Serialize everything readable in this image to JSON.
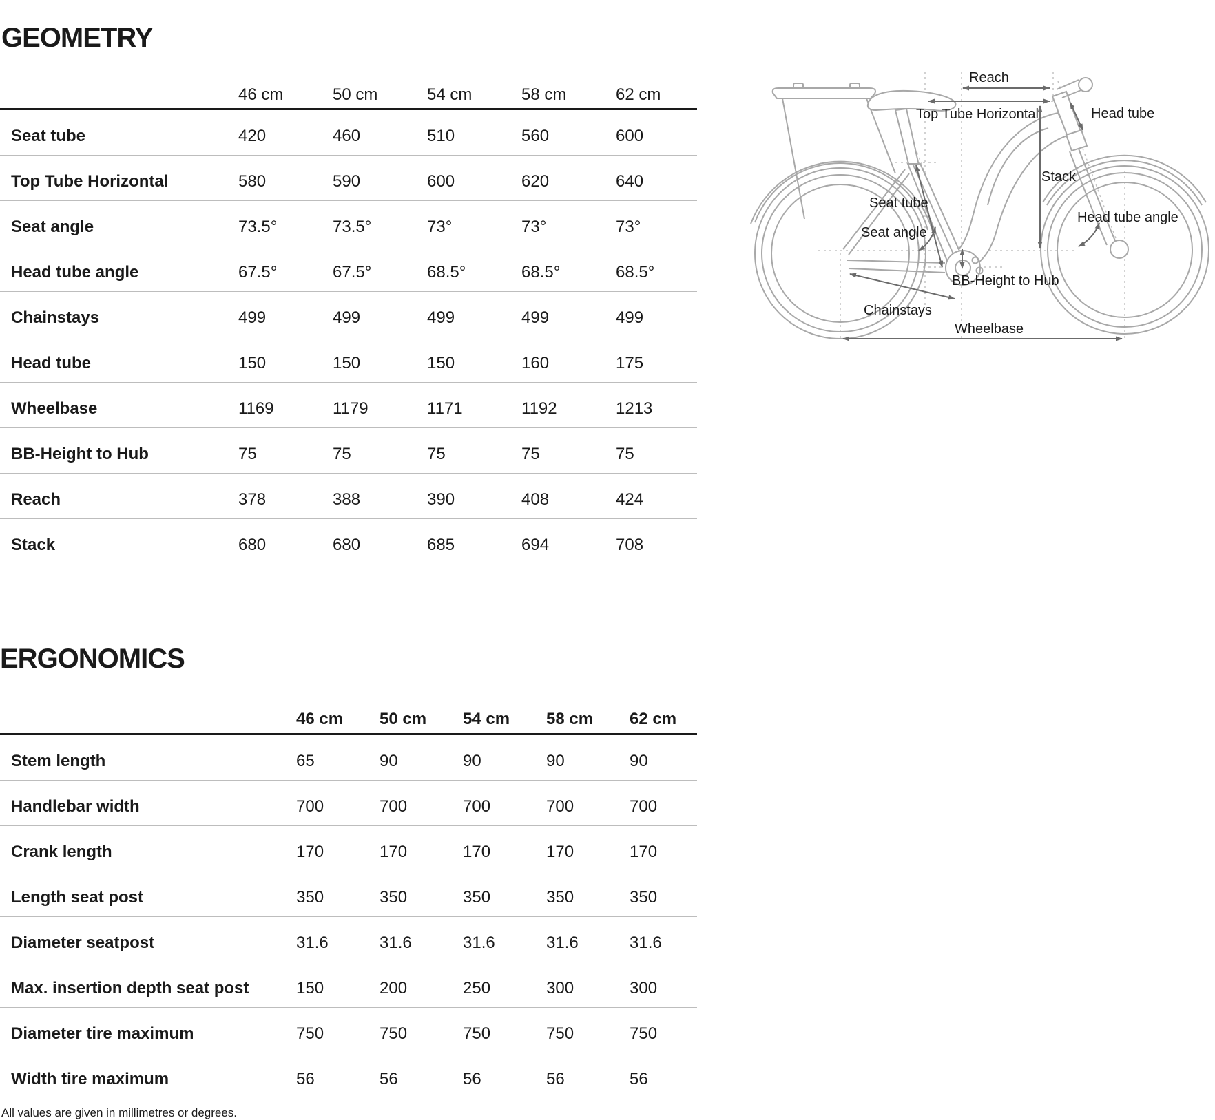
{
  "geometry": {
    "title": "GEOMETRY",
    "columns": [
      "46 cm",
      "50 cm",
      "54 cm",
      "58 cm",
      "62 cm"
    ],
    "rows": [
      {
        "label": "Seat tube",
        "values": [
          "420",
          "460",
          "510",
          "560",
          "600"
        ]
      },
      {
        "label": "Top Tube Horizontal",
        "values": [
          "580",
          "590",
          "600",
          "620",
          "640"
        ]
      },
      {
        "label": "Seat angle",
        "values": [
          "73.5°",
          "73.5°",
          "73°",
          "73°",
          "73°"
        ]
      },
      {
        "label": "Head tube angle",
        "values": [
          "67.5°",
          "67.5°",
          "68.5°",
          "68.5°",
          "68.5°"
        ]
      },
      {
        "label": "Chainstays",
        "values": [
          "499",
          "499",
          "499",
          "499",
          "499"
        ]
      },
      {
        "label": "Head tube",
        "values": [
          "150",
          "150",
          "150",
          "160",
          "175"
        ]
      },
      {
        "label": "Wheelbase",
        "values": [
          "1169",
          "1179",
          "1171",
          "1192",
          "1213"
        ]
      },
      {
        "label": "BB-Height to Hub",
        "values": [
          "75",
          "75",
          "75",
          "75",
          "75"
        ]
      },
      {
        "label": "Reach",
        "values": [
          "378",
          "388",
          "390",
          "408",
          "424"
        ]
      },
      {
        "label": "Stack",
        "values": [
          "680",
          "680",
          "685",
          "694",
          "708"
        ]
      }
    ]
  },
  "ergonomics": {
    "title": "ERGONOMICS",
    "columns": [
      "46 cm",
      "50 cm",
      "54 cm",
      "58 cm",
      "62 cm"
    ],
    "rows": [
      {
        "label": "Stem length",
        "values": [
          "65",
          "90",
          "90",
          "90",
          "90"
        ]
      },
      {
        "label": "Handlebar width",
        "values": [
          "700",
          "700",
          "700",
          "700",
          "700"
        ]
      },
      {
        "label": "Crank length",
        "values": [
          "170",
          "170",
          "170",
          "170",
          "170"
        ]
      },
      {
        "label": "Length seat post",
        "values": [
          "350",
          "350",
          "350",
          "350",
          "350"
        ]
      },
      {
        "label": "Diameter seatpost",
        "values": [
          "31.6",
          "31.6",
          "31.6",
          "31.6",
          "31.6"
        ]
      },
      {
        "label": "Max. insertion depth seat post",
        "values": [
          "150",
          "200",
          "250",
          "300",
          "300"
        ]
      },
      {
        "label": "Diameter tire maximum",
        "values": [
          "750",
          "750",
          "750",
          "750",
          "750"
        ]
      },
      {
        "label": "Width tire maximum",
        "values": [
          "56",
          "56",
          "56",
          "56",
          "56"
        ]
      }
    ]
  },
  "diagram": {
    "labels": {
      "reach": "Reach",
      "top_tube": "Top Tube Horizontal",
      "head_tube": "Head tube",
      "stack": "Stack",
      "seat_tube": "Seat tube",
      "seat_angle": "Seat angle",
      "head_tube_angle": "Head tube angle",
      "bb_height": "BB-Height to Hub",
      "chainstays": "Chainstays",
      "wheelbase": "Wheelbase"
    }
  },
  "footer": {
    "note": "All values are given in millimetres or degrees."
  },
  "colors": {
    "ink": "#1a1a1a",
    "sep": "#bdbdbd",
    "frame": "#a8a8a8",
    "arrow": "#6b6b6b",
    "dots": "#c4c4c4"
  }
}
